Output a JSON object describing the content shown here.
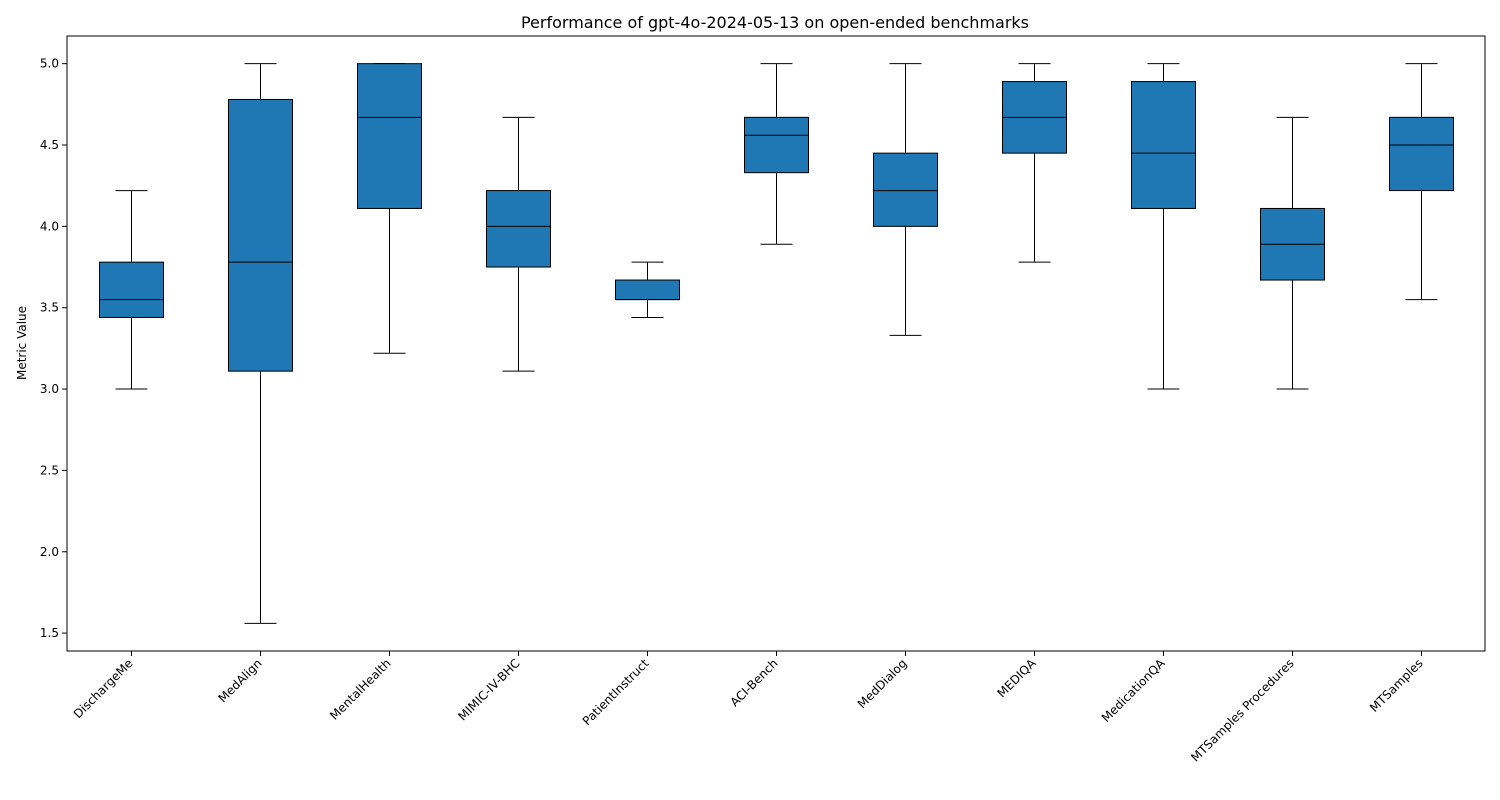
{
  "chart_data": {
    "type": "boxplot",
    "title": "Performance of gpt-4o-2024-05-13 on open-ended benchmarks",
    "xlabel": "",
    "ylabel": "Metric Value",
    "ylim": [
      1.39,
      5.17
    ],
    "yticks": [
      1.5,
      2.0,
      2.5,
      3.0,
      3.5,
      4.0,
      4.5,
      5.0
    ],
    "ytick_labels": [
      "1.5",
      "2.0",
      "2.5",
      "3.0",
      "3.5",
      "4.0",
      "4.5",
      "5.0"
    ],
    "grid": false,
    "box_color": "#1f77b4",
    "categories": [
      "DischargeMe",
      "MedAlign",
      "MentalHealth",
      "MIMIC-IV-BHC",
      "PatientInstruct",
      "ACI-Bench",
      "MedDialog",
      "MEDIQA",
      "MedicationQA",
      "MTSamples Procedures",
      "MTSamples"
    ],
    "boxes": [
      {
        "whisker_low": 3.0,
        "q1": 3.44,
        "median": 3.55,
        "q3": 3.78,
        "whisker_high": 4.22
      },
      {
        "whisker_low": 1.56,
        "q1": 3.11,
        "median": 3.78,
        "q3": 4.78,
        "whisker_high": 5.0
      },
      {
        "whisker_low": 3.22,
        "q1": 4.11,
        "median": 4.67,
        "q3": 5.0,
        "whisker_high": 5.0
      },
      {
        "whisker_low": 3.11,
        "q1": 3.75,
        "median": 4.0,
        "q3": 4.22,
        "whisker_high": 4.67
      },
      {
        "whisker_low": 3.44,
        "q1": 3.55,
        "median": 3.55,
        "q3": 3.67,
        "whisker_high": 3.78
      },
      {
        "whisker_low": 3.89,
        "q1": 4.33,
        "median": 4.56,
        "q3": 4.67,
        "whisker_high": 5.0
      },
      {
        "whisker_low": 3.33,
        "q1": 4.0,
        "median": 4.22,
        "q3": 4.45,
        "whisker_high": 5.0
      },
      {
        "whisker_low": 3.78,
        "q1": 4.45,
        "median": 4.67,
        "q3": 4.89,
        "whisker_high": 5.0
      },
      {
        "whisker_low": 3.0,
        "q1": 4.11,
        "median": 4.45,
        "q3": 4.89,
        "whisker_high": 5.0
      },
      {
        "whisker_low": 3.0,
        "q1": 3.67,
        "median": 3.89,
        "q3": 4.11,
        "whisker_high": 4.67
      },
      {
        "whisker_low": 3.55,
        "q1": 4.22,
        "median": 4.5,
        "q3": 4.67,
        "whisker_high": 5.0
      }
    ]
  }
}
